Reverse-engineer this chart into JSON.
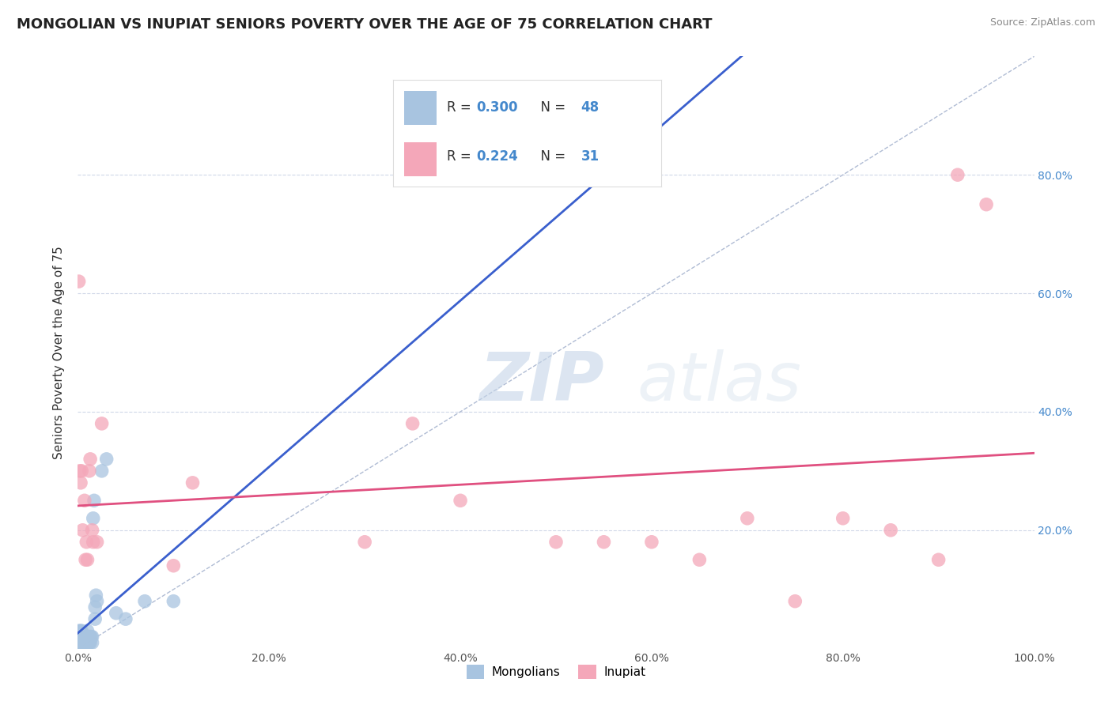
{
  "title": "MONGOLIAN VS INUPIAT SENIORS POVERTY OVER THE AGE OF 75 CORRELATION CHART",
  "source": "Source: ZipAtlas.com",
  "ylabel": "Seniors Poverty Over the Age of 75",
  "mongolian_R": 0.3,
  "mongolian_N": 48,
  "inupiat_R": 0.224,
  "inupiat_N": 31,
  "mongolian_color": "#a8c4e0",
  "inupiat_color": "#f4a7b9",
  "mongolian_line_color": "#3a5fcd",
  "inupiat_line_color": "#e05080",
  "diagonal_color": "#b0bcd4",
  "right_tick_color": "#4488cc",
  "background_color": "#ffffff",
  "mongolian_x": [
    0.001,
    0.001,
    0.001,
    0.002,
    0.002,
    0.002,
    0.003,
    0.003,
    0.003,
    0.004,
    0.004,
    0.004,
    0.005,
    0.005,
    0.005,
    0.006,
    0.006,
    0.007,
    0.007,
    0.007,
    0.008,
    0.008,
    0.009,
    0.009,
    0.01,
    0.01,
    0.01,
    0.011,
    0.011,
    0.012,
    0.012,
    0.013,
    0.013,
    0.014,
    0.015,
    0.015,
    0.016,
    0.017,
    0.018,
    0.018,
    0.019,
    0.02,
    0.025,
    0.03,
    0.04,
    0.05,
    0.07,
    0.1
  ],
  "mongolian_y": [
    0.01,
    0.02,
    0.03,
    0.0,
    0.01,
    0.02,
    0.01,
    0.02,
    0.03,
    0.01,
    0.02,
    0.03,
    0.0,
    0.01,
    0.02,
    0.01,
    0.02,
    0.0,
    0.01,
    0.02,
    0.01,
    0.02,
    0.01,
    0.02,
    0.01,
    0.02,
    0.03,
    0.01,
    0.02,
    0.01,
    0.02,
    0.01,
    0.02,
    0.02,
    0.01,
    0.02,
    0.22,
    0.25,
    0.05,
    0.07,
    0.09,
    0.08,
    0.3,
    0.32,
    0.06,
    0.05,
    0.08,
    0.08
  ],
  "inupiat_x": [
    0.001,
    0.002,
    0.003,
    0.004,
    0.005,
    0.007,
    0.008,
    0.009,
    0.01,
    0.012,
    0.013,
    0.015,
    0.016,
    0.02,
    0.025,
    0.1,
    0.12,
    0.3,
    0.35,
    0.4,
    0.5,
    0.55,
    0.6,
    0.65,
    0.7,
    0.75,
    0.8,
    0.85,
    0.9,
    0.92,
    0.95
  ],
  "inupiat_y": [
    0.62,
    0.3,
    0.28,
    0.3,
    0.2,
    0.25,
    0.15,
    0.18,
    0.15,
    0.3,
    0.32,
    0.2,
    0.18,
    0.18,
    0.38,
    0.14,
    0.28,
    0.18,
    0.38,
    0.25,
    0.18,
    0.18,
    0.18,
    0.15,
    0.22,
    0.08,
    0.22,
    0.2,
    0.15,
    0.8,
    0.75
  ],
  "xlim": [
    0.0,
    1.0
  ],
  "ylim": [
    0.0,
    1.0
  ],
  "xticks": [
    0.0,
    0.2,
    0.4,
    0.6,
    0.8,
    1.0
  ],
  "xticklabels": [
    "0.0%",
    "20.0%",
    "40.0%",
    "60.0%",
    "80.0%",
    "100.0%"
  ],
  "yticks": [
    0.0,
    0.2,
    0.4,
    0.6,
    0.8
  ],
  "right_yticklabels": [
    "",
    "20.0%",
    "40.0%",
    "60.0%",
    "80.0%"
  ],
  "watermark_zip": "ZIP",
  "watermark_atlas": "atlas",
  "title_fontsize": 13,
  "axis_label_fontsize": 11,
  "tick_fontsize": 10,
  "legend_fontsize": 12
}
